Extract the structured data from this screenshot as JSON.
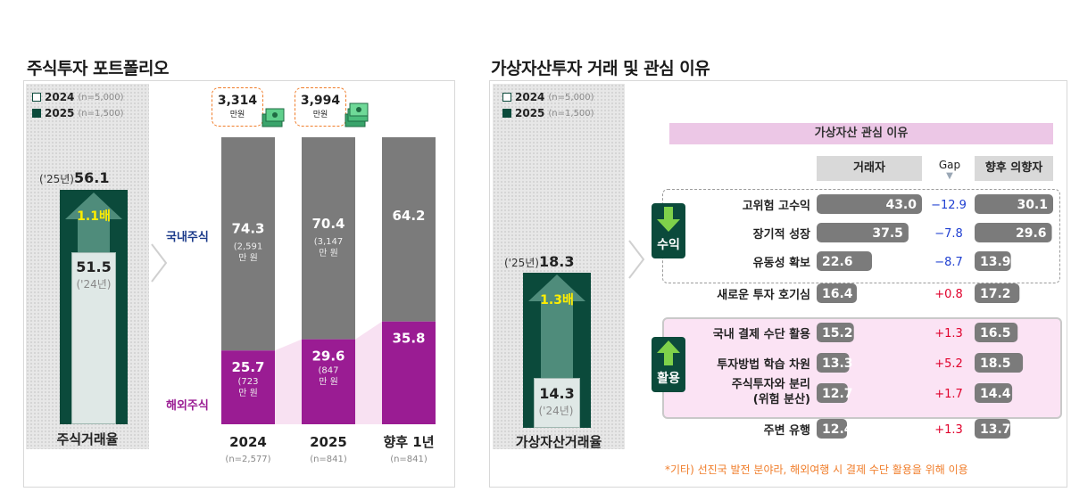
{
  "colors": {
    "dark_green": "#0b4a3b",
    "gray_bar": "#7b7b7b",
    "purple": "#9a1c93",
    "pink_bg": "#f8e1f2",
    "accent_yellow": "#ffee00",
    "note_orange": "#f07d2a"
  },
  "legend": {
    "y2024": "2024",
    "y2024_n": "(n=5,000)",
    "y2025": "2025",
    "y2025_n": "(n=1,500)"
  },
  "left": {
    "title": "주식투자 포트폴리오",
    "rate": {
      "pre25": "('25년)",
      "val25": "56.1",
      "mult": "1.1배",
      "val24": "51.5",
      "pre24": "('24년)",
      "caption": "주식거래율",
      "val25_num": 56.1,
      "val24_num": 51.5
    },
    "amounts": [
      {
        "value": "3,314",
        "unit": "만원"
      },
      {
        "value": "3,994",
        "unit": "만원"
      }
    ],
    "domestic_label": "국내주식",
    "overseas_label": "해외주식"
  },
  "right": {
    "title": "가상자산투자 거래 및 관심 이유",
    "rate": {
      "pre25": "('25년)",
      "val25": "18.3",
      "mult": "1.3배",
      "val24": "14.3",
      "pre24": "('24년)",
      "caption": "가상자산거래율",
      "val25_num": 18.3,
      "val24_num": 14.3
    },
    "header": "가상자산 관심 이유",
    "col_trader": "거래자",
    "col_gap": "Gap",
    "col_intent": "향후 의향자",
    "group_profit": "수익",
    "group_use": "활용",
    "note": "*기타) 선진국 발전 분야라, 해외여행 시 결제 수단 활용을 위해 이용"
  },
  "chart_data": [
    {
      "type": "bar",
      "title": "주식투자 포트폴리오",
      "categories": [
        "2024",
        "2025",
        "향후 1년"
      ],
      "category_n": [
        "(n=2,577)",
        "(n=841)",
        "(n=841)"
      ],
      "series": [
        {
          "name": "국내주식",
          "values": [
            74.3,
            70.4,
            64.2
          ],
          "notes": [
            "(2,591\n만 원)",
            "(3,147\n만 원)",
            ""
          ]
        },
        {
          "name": "해외주식",
          "values": [
            25.7,
            29.6,
            35.8
          ],
          "notes": [
            "(723\n만 원)",
            "(847\n만 원)",
            ""
          ]
        }
      ],
      "labels": {
        "dom": [
          "74.3",
          "70.4",
          "64.2"
        ],
        "ovs": [
          "25.7",
          "29.6",
          "35.8"
        ],
        "dom_notes": [
          "(2,591",
          "(3,147",
          ""
        ],
        "ovs_notes": [
          "(723",
          "(847",
          ""
        ],
        "note_unit": "만 원"
      },
      "stacked": true,
      "ylim": [
        0,
        100
      ]
    },
    {
      "type": "bar",
      "title": "가상자산 관심 이유",
      "categories": [
        "고위험 고수익",
        "장기적 성장",
        "유동성 확보",
        "새로운 투자 호기심",
        "국내 결제 수단 활용",
        "투자방법 학습 차원",
        "주식투자와 분리\n(위험 분산)",
        "주변 유행"
      ],
      "series": [
        {
          "name": "거래자",
          "values": [
            43.0,
            37.5,
            22.6,
            16.4,
            15.2,
            13.3,
            12.7,
            12.4
          ]
        },
        {
          "name": "향후 의향자",
          "values": [
            30.1,
            29.6,
            13.9,
            17.2,
            16.5,
            18.5,
            14.4,
            13.7
          ]
        }
      ],
      "gap": [
        -12.9,
        -7.8,
        -8.7,
        0.8,
        1.3,
        5.2,
        1.7,
        1.3
      ],
      "labels": {
        "rows": [
          "고위험 고수익",
          "장기적 성장",
          "유동성 확보",
          "새로운 투자 호기심",
          "국내 결제 수단 활용",
          "투자방법 학습 차원",
          "주식투자와 분리",
          "(위험 분산)",
          "주변 유행"
        ],
        "trader": [
          "43.0",
          "37.5",
          "22.6",
          "16.4",
          "15.2",
          "13.3",
          "12.7",
          "12.4"
        ],
        "intent": [
          "30.1",
          "29.6",
          "13.9",
          "17.2",
          "16.5",
          "18.5",
          "14.4",
          "13.7"
        ],
        "gap": [
          "−12.9",
          "−7.8",
          "−8.7",
          "+0.8",
          "+1.3",
          "+5.2",
          "+1.7",
          "+1.3"
        ]
      }
    }
  ]
}
